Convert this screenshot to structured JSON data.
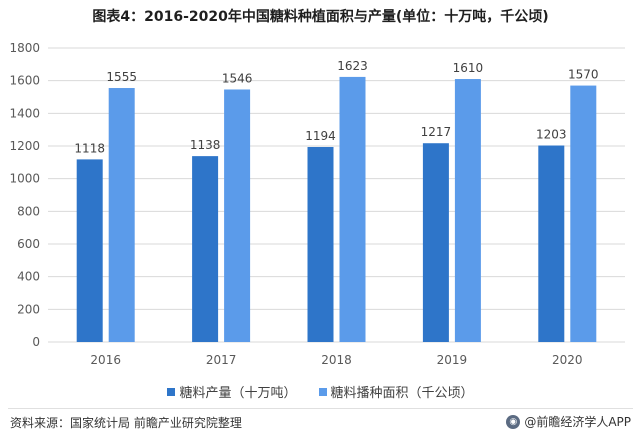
{
  "title": "图表4：2016-2020年中国糖料种植面积与产量(单位：十万吨，千公顷)",
  "chart_data": {
    "type": "bar",
    "categories": [
      "2016",
      "2017",
      "2018",
      "2019",
      "2020"
    ],
    "series": [
      {
        "name": "糖料产量（十万吨）",
        "values": [
          1118,
          1138,
          1194,
          1217,
          1203
        ],
        "color": "#2e75c9"
      },
      {
        "name": "糖料播种面积（千公顷）",
        "values": [
          1555,
          1546,
          1623,
          1610,
          1570
        ],
        "color": "#5b9bea"
      }
    ],
    "ylim": [
      0,
      1800
    ],
    "yticks": [
      0,
      200,
      400,
      600,
      800,
      1000,
      1200,
      1400,
      1600,
      1800
    ],
    "grid": true,
    "legend_position": "bottom"
  },
  "source": "资料来源：国家统计局 前瞻产业研究院整理",
  "brand": {
    "icon": "brand-logo-icon",
    "label": "@前瞻经济学人APP"
  }
}
